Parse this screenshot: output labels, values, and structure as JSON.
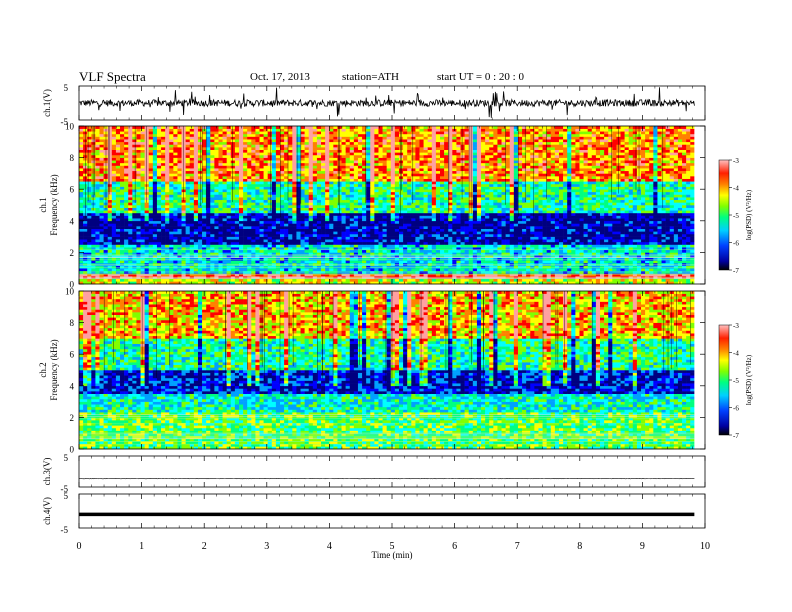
{
  "header": {
    "title": "VLF  Spectra",
    "date": "Oct. 17, 2013",
    "station": "station=ATH",
    "start": "start  UT  =   0  : 20 : 0"
  },
  "chart_data": [
    {
      "type": "line",
      "channel": "ch.1",
      "ylabel": "ch.1(V)",
      "yticks": [
        "5",
        "-5"
      ],
      "ylim": [
        -5,
        5
      ],
      "xlim": [
        0,
        9.83
      ],
      "series": [
        {
          "baseline": 0.0,
          "noise_amplitude": 1.0,
          "spike_amplitude": 4.0
        }
      ]
    },
    {
      "type": "heatmap",
      "channel": "ch.1",
      "ylabel": "ch.1\nFrequency  (kHz)",
      "yticks": [
        "0",
        "2",
        "4",
        "6",
        "8",
        "10"
      ],
      "ylim": [
        0,
        10
      ],
      "xlim": [
        0,
        9.83
      ],
      "colorbar": {
        "label": "log(PSD) (V²/Hz)",
        "ticks": [
          "-3",
          "-4",
          "-5",
          "-6",
          "-7"
        ],
        "range": [
          -7,
          -3
        ]
      },
      "description_bands": [
        {
          "f_range": [
            0,
            0.3
          ],
          "level": -4.5
        },
        {
          "f_range": [
            0.3,
            0.6
          ],
          "level": -3.5
        },
        {
          "f_range": [
            0.6,
            2.5
          ],
          "level": -5.6
        },
        {
          "f_range": [
            2.5,
            4.5
          ],
          "level": -6.7
        },
        {
          "f_range": [
            4.5,
            6.5
          ],
          "level": -5.3
        },
        {
          "f_range": [
            6.5,
            10
          ],
          "level": -4.0
        }
      ]
    },
    {
      "type": "heatmap",
      "channel": "ch.2",
      "ylabel": "ch.2\nFrequency  (kHz)",
      "yticks": [
        "0",
        "2",
        "4",
        "6",
        "8",
        "10"
      ],
      "ylim": [
        0,
        10
      ],
      "xlim": [
        0,
        9.83
      ],
      "colorbar": {
        "label": "log(PSD) (V²/Hz)",
        "ticks": [
          "-3",
          "-4",
          "-5",
          "-6",
          "-7"
        ],
        "range": [
          -7,
          -3
        ]
      },
      "description_bands": [
        {
          "f_range": [
            0,
            0.3
          ],
          "level": -5.0
        },
        {
          "f_range": [
            0.3,
            2.3
          ],
          "level": -5.0
        },
        {
          "f_range": [
            2.3,
            3.5
          ],
          "level": -5.5
        },
        {
          "f_range": [
            3.5,
            5.0
          ],
          "level": -6.5
        },
        {
          "f_range": [
            5.0,
            7.0
          ],
          "level": -5.3
        },
        {
          "f_range": [
            7.0,
            10
          ],
          "level": -4.2
        }
      ]
    },
    {
      "type": "line",
      "channel": "ch.3",
      "ylabel": "ch.3(V)",
      "yticks": [
        "5",
        "-5"
      ],
      "ylim": [
        -5,
        5
      ],
      "xlim": [
        0,
        9.83
      ],
      "series": [
        {
          "baseline": -2.3,
          "noise_amplitude": 0.05
        }
      ]
    },
    {
      "type": "line",
      "channel": "ch.4",
      "ylabel": "ch.4(V)",
      "yticks": [
        "5",
        "-5"
      ],
      "ylim": [
        -5,
        5
      ],
      "xlim": [
        0,
        9.83
      ],
      "series": [
        {
          "baseline": -1.0,
          "noise_amplitude": 0.3
        }
      ]
    }
  ],
  "x_axis": {
    "label": "Time  (min)",
    "ticks": [
      "0",
      "1",
      "2",
      "3",
      "4",
      "5",
      "6",
      "7",
      "8",
      "9",
      "10"
    ],
    "range": [
      0,
      10
    ]
  },
  "colormap": [
    "#000080",
    "#0000ff",
    "#00a0ff",
    "#00ffff",
    "#00ff80",
    "#80ff00",
    "#ffff00",
    "#ff8000",
    "#ff0000",
    "#ffa0a0",
    "#ffffff"
  ]
}
